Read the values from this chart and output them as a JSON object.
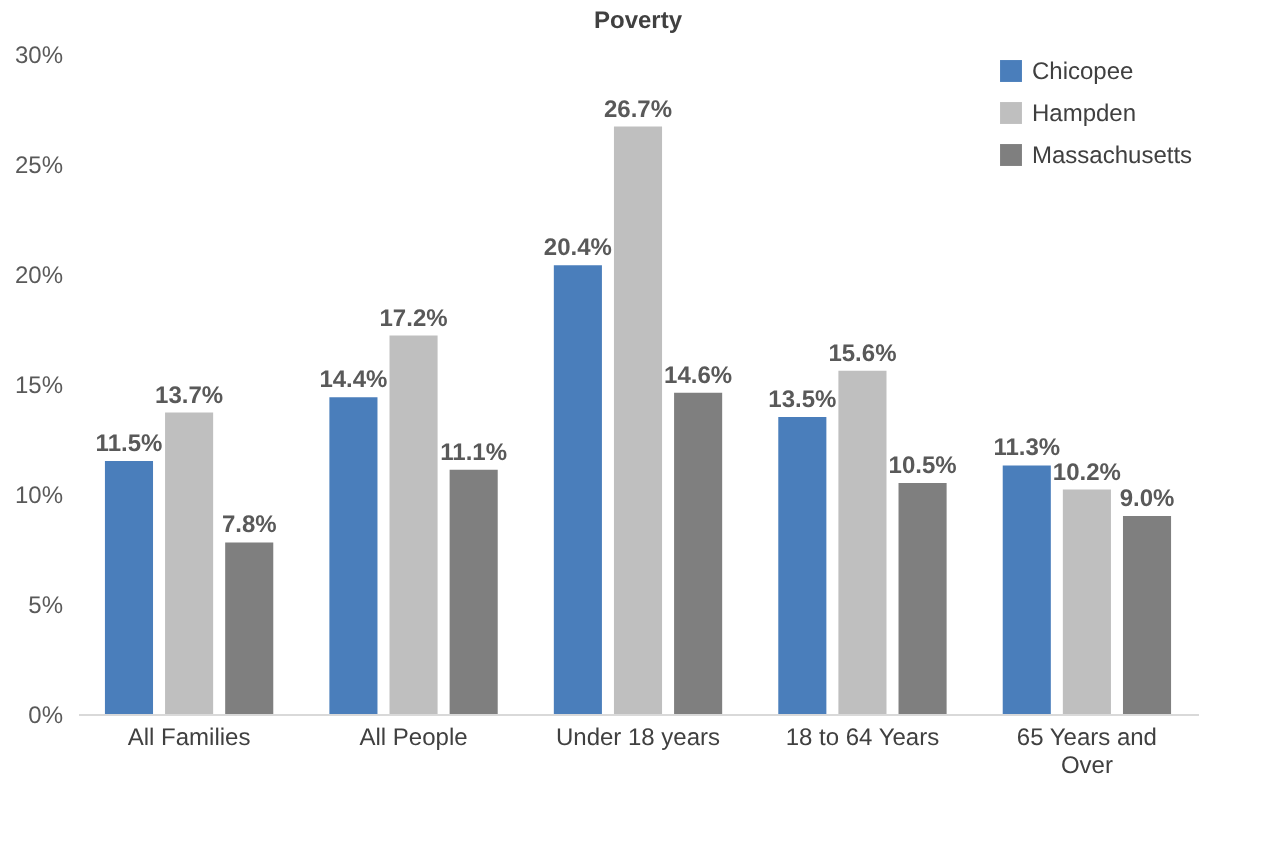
{
  "chart_data": {
    "type": "bar",
    "title": "Poverty",
    "categories": [
      "All Families",
      "All People",
      "Under 18 years",
      "18 to 64 Years",
      "65 Years and Over"
    ],
    "series": [
      {
        "name": "Chicopee",
        "color": "#4a7ebb",
        "values": [
          11.5,
          14.4,
          20.4,
          13.5,
          11.3
        ],
        "value_labels": [
          "11.5%",
          "14.4%",
          "20.4%",
          "13.5%",
          "11.3%"
        ]
      },
      {
        "name": "Hampden",
        "color": "#bfbfbf",
        "values": [
          13.7,
          17.2,
          26.7,
          15.6,
          10.2
        ],
        "value_labels": [
          "13.7%",
          "17.2%",
          "26.7%",
          "15.6%",
          "10.2%"
        ]
      },
      {
        "name": "Massachusetts",
        "color": "#7f7f7f",
        "values": [
          7.8,
          11.1,
          14.6,
          10.5,
          9.0
        ],
        "value_labels": [
          "7.8%",
          "11.1%",
          "14.6%",
          "10.5%",
          "9.0%"
        ]
      }
    ],
    "ylim": [
      0,
      30
    ],
    "yticks": [
      {
        "value": 0,
        "label": "0%"
      },
      {
        "value": 5,
        "label": "5%"
      },
      {
        "value": 10,
        "label": "10%"
      },
      {
        "value": 15,
        "label": "15%"
      },
      {
        "value": 20,
        "label": "20%"
      },
      {
        "value": 25,
        "label": "25%"
      },
      {
        "value": 30,
        "label": "30%"
      }
    ],
    "grid": false,
    "legend": "top right"
  }
}
